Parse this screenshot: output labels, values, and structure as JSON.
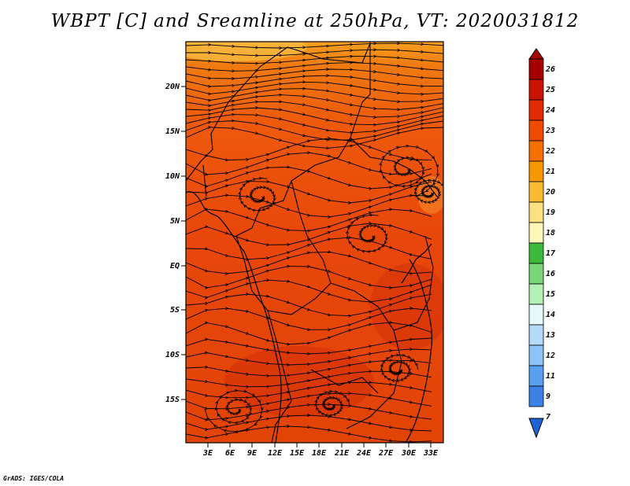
{
  "title": "WBPT [C] and Sreamline at 250hPa, VT: 2020031812",
  "footer": "GrADS: IGES/COLA",
  "map": {
    "lat_labels": [
      "20N",
      "15N",
      "10N",
      "5N",
      "EQ",
      "5S",
      "10S",
      "15S"
    ],
    "lon_labels": [
      "3E",
      "6E",
      "9E",
      "12E",
      "15E",
      "18E",
      "21E",
      "24E",
      "27E",
      "30E",
      "33E"
    ]
  },
  "colorbar": {
    "labels": [
      "26",
      "25",
      "24",
      "23",
      "22",
      "21",
      "20",
      "19",
      "18",
      "17",
      "16",
      "15",
      "14",
      "13",
      "12",
      "11",
      "9",
      "7"
    ],
    "colors": [
      "#a50000",
      "#c81400",
      "#e02c00",
      "#f04a00",
      "#f57000",
      "#f89800",
      "#fcba32",
      "#fde080",
      "#fdf8b8",
      "#3cba3c",
      "#78d878",
      "#b4f0b4",
      "#e6f8f8",
      "#b4dcf8",
      "#8cc4f8",
      "#5aa0f0",
      "#3c82e6",
      "#1e64d2"
    ]
  }
}
